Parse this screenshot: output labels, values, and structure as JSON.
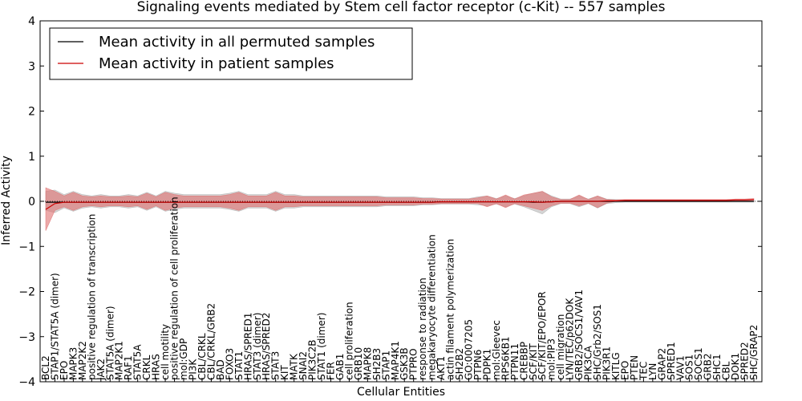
{
  "chart_data": {
    "type": "line",
    "title": "Signaling events mediated by Stem cell factor receptor (c-Kit) -- 557 samples",
    "xlabel": "Cellular Entities",
    "ylabel": "Inferred Activity",
    "ylim": [
      -4,
      4
    ],
    "yticks": [
      -4,
      -3,
      -2,
      -1,
      0,
      1,
      2,
      3,
      4
    ],
    "ytick_labels": [
      "−4",
      "−3",
      "−2",
      "−1",
      "0",
      "1",
      "2",
      "3",
      "4"
    ],
    "categories": [
      "BCL2",
      "STAP1/STAT5A (dimer)",
      "EPO",
      "MAPK3",
      "MAP2K2",
      "positive regulation of transcription",
      "JAK2",
      "STAT5A (dimer)",
      "MAP2K1",
      "RAF1",
      "STAT5A",
      "CRKL",
      "HRAS",
      "cell motility",
      "positive regulation of cell proliferation",
      "mol:GDP",
      "PI3K",
      "CBL/CRKL",
      "CBL/CRKL/GRB2",
      "BAD",
      "FOXO3",
      "STAT1",
      "HRAS/SPRED1",
      "STAT3 (dimer)",
      "HRAS/SPRED2",
      "STAT3",
      "KIT",
      "MATK",
      "SNAI2",
      "PIK3C2B",
      "STAT1 (dimer)",
      "FER",
      "GAB1",
      "cell proliferation",
      "GRB10",
      "MAPK8",
      "SH2B3",
      "STAP1",
      "MAP4K1",
      "GSK3B",
      "PTPRO",
      "response to radiation",
      "megakaryocyte differentiation",
      "AKT1",
      "actin filament polymerization",
      "SH2B2",
      "GO:0007205",
      "PTPN6",
      "PDPK1",
      "mol:Gleevec",
      "RPS6KB1",
      "PTPN11",
      "CREBBP",
      "SCF/KIT",
      "SCF/KIT/EPO/EPOR",
      "mol:PIP3",
      "cell migration",
      "LYN/TEC/p62DOK",
      "GRB2/SOCS1/VAV1",
      "PIK3CA",
      "SHC/Grb2/SOS1",
      "PIK3R1",
      "KITLG",
      "EPO",
      "PTEN",
      "TEC",
      "LYN",
      "GRAP2",
      "SPRED1",
      "VAV1",
      "SOS1",
      "SOCS1",
      "GRB2",
      "SHC1",
      "CBL",
      "DOK1",
      "SPRED2",
      "SHC/GRAP2"
    ],
    "series": [
      {
        "name": "Mean activity in all permuted samples",
        "color": "#000000",
        "values": [
          -0.02,
          -0.02,
          -0.02,
          -0.02,
          -0.02,
          -0.02,
          -0.02,
          -0.02,
          -0.02,
          -0.02,
          -0.02,
          -0.02,
          -0.02,
          -0.02,
          -0.02,
          -0.02,
          -0.02,
          -0.02,
          -0.02,
          -0.02,
          -0.02,
          -0.02,
          -0.02,
          -0.02,
          -0.02,
          -0.02,
          -0.02,
          -0.02,
          -0.02,
          -0.02,
          -0.02,
          -0.02,
          -0.02,
          -0.02,
          -0.02,
          -0.02,
          -0.02,
          -0.02,
          -0.02,
          -0.02,
          -0.02,
          -0.02,
          -0.02,
          -0.01,
          -0.01,
          -0.01,
          -0.01,
          -0.01,
          -0.01,
          -0.01,
          -0.01,
          -0.01,
          -0.01,
          -0.02,
          -0.02,
          -0.01,
          0.0,
          0.0,
          0.0,
          0.0,
          0.0,
          0.0,
          0.0,
          0.0,
          0.0,
          0.0,
          0.0,
          0.0,
          0.0,
          0.0,
          0.0,
          0.0,
          0.0,
          0.0,
          0.0,
          0.0,
          0.0,
          0.0
        ],
        "band_low": [
          -0.2,
          -0.25,
          -0.15,
          -0.22,
          -0.15,
          -0.12,
          -0.15,
          -0.12,
          -0.12,
          -0.15,
          -0.12,
          -0.2,
          -0.12,
          -0.22,
          -0.18,
          -0.15,
          -0.15,
          -0.15,
          -0.15,
          -0.15,
          -0.18,
          -0.22,
          -0.15,
          -0.15,
          -0.15,
          -0.22,
          -0.15,
          -0.15,
          -0.12,
          -0.12,
          -0.12,
          -0.12,
          -0.12,
          -0.12,
          -0.12,
          -0.12,
          -0.12,
          -0.1,
          -0.1,
          -0.1,
          -0.1,
          -0.08,
          -0.08,
          -0.06,
          -0.06,
          -0.06,
          -0.06,
          -0.08,
          -0.1,
          -0.06,
          -0.12,
          -0.06,
          -0.12,
          -0.2,
          -0.28,
          -0.12,
          -0.05,
          -0.05,
          -0.12,
          -0.05,
          -0.15,
          -0.05,
          -0.03,
          -0.02,
          -0.02,
          -0.02,
          -0.02,
          -0.02,
          -0.02,
          -0.02,
          -0.02,
          -0.02,
          -0.02,
          -0.02,
          -0.02,
          -0.02,
          -0.02,
          -0.02
        ],
        "band_high": [
          0.22,
          0.25,
          0.15,
          0.22,
          0.15,
          0.12,
          0.15,
          0.12,
          0.12,
          0.15,
          0.12,
          0.2,
          0.12,
          0.22,
          0.18,
          0.15,
          0.15,
          0.15,
          0.15,
          0.15,
          0.18,
          0.22,
          0.15,
          0.15,
          0.15,
          0.22,
          0.15,
          0.15,
          0.12,
          0.12,
          0.12,
          0.12,
          0.12,
          0.12,
          0.12,
          0.12,
          0.12,
          0.1,
          0.1,
          0.1,
          0.1,
          0.08,
          0.08,
          0.06,
          0.06,
          0.06,
          0.06,
          0.1,
          0.12,
          0.06,
          0.12,
          0.06,
          0.12,
          0.18,
          0.22,
          0.12,
          0.05,
          0.05,
          0.12,
          0.05,
          0.12,
          0.05,
          0.04,
          0.03,
          0.03,
          0.03,
          0.03,
          0.03,
          0.03,
          0.03,
          0.03,
          0.03,
          0.03,
          0.03,
          0.03,
          0.03,
          0.03,
          0.03
        ]
      },
      {
        "name": "Mean activity in patient samples",
        "color": "#cc0000",
        "values": [
          -0.18,
          -0.05,
          -0.02,
          -0.02,
          -0.02,
          -0.02,
          -0.02,
          -0.02,
          -0.02,
          -0.02,
          -0.02,
          -0.02,
          -0.02,
          -0.02,
          -0.02,
          -0.02,
          -0.02,
          -0.02,
          -0.02,
          -0.02,
          -0.02,
          -0.02,
          -0.02,
          -0.02,
          -0.02,
          -0.02,
          -0.02,
          -0.02,
          -0.02,
          -0.02,
          -0.02,
          -0.02,
          -0.02,
          -0.02,
          -0.02,
          -0.02,
          -0.02,
          -0.02,
          -0.02,
          -0.02,
          -0.02,
          -0.02,
          -0.02,
          -0.01,
          -0.01,
          -0.01,
          -0.01,
          -0.01,
          -0.01,
          -0.01,
          -0.01,
          -0.01,
          -0.01,
          -0.01,
          -0.02,
          -0.01,
          0.0,
          0.0,
          0.0,
          0.0,
          0.0,
          0.01,
          0.01,
          0.02,
          0.02,
          0.02,
          0.02,
          0.02,
          0.02,
          0.02,
          0.02,
          0.02,
          0.02,
          0.02,
          0.02,
          0.03,
          0.03,
          0.04
        ],
        "band_low": [
          -0.65,
          -0.2,
          -0.12,
          -0.2,
          -0.12,
          -0.1,
          -0.12,
          -0.1,
          -0.1,
          -0.12,
          -0.1,
          -0.18,
          -0.1,
          -0.2,
          -0.15,
          -0.12,
          -0.12,
          -0.12,
          -0.12,
          -0.12,
          -0.15,
          -0.2,
          -0.12,
          -0.12,
          -0.12,
          -0.2,
          -0.12,
          -0.12,
          -0.1,
          -0.1,
          -0.1,
          -0.1,
          -0.1,
          -0.1,
          -0.1,
          -0.1,
          -0.1,
          -0.08,
          -0.08,
          -0.08,
          -0.08,
          -0.06,
          -0.06,
          -0.05,
          -0.05,
          -0.05,
          -0.05,
          -0.05,
          -0.12,
          -0.05,
          -0.14,
          -0.05,
          -0.1,
          -0.15,
          -0.2,
          -0.1,
          -0.04,
          -0.04,
          -0.1,
          -0.04,
          -0.14,
          -0.04,
          0.0,
          0.0,
          0.0,
          0.0,
          0.0,
          0.0,
          0.0,
          0.0,
          0.0,
          0.0,
          0.0,
          0.0,
          0.0,
          0.01,
          0.01,
          0.02
        ],
        "band_high": [
          0.3,
          0.22,
          0.12,
          0.2,
          0.12,
          0.1,
          0.12,
          0.1,
          0.1,
          0.12,
          0.1,
          0.18,
          0.1,
          0.2,
          0.15,
          0.12,
          0.12,
          0.12,
          0.12,
          0.12,
          0.15,
          0.2,
          0.12,
          0.12,
          0.12,
          0.2,
          0.12,
          0.12,
          0.1,
          0.1,
          0.1,
          0.1,
          0.1,
          0.1,
          0.1,
          0.1,
          0.1,
          0.08,
          0.08,
          0.08,
          0.08,
          0.06,
          0.06,
          0.05,
          0.05,
          0.05,
          0.05,
          0.08,
          0.12,
          0.05,
          0.14,
          0.05,
          0.14,
          0.18,
          0.22,
          0.1,
          0.04,
          0.04,
          0.14,
          0.04,
          0.12,
          0.04,
          0.03,
          0.04,
          0.04,
          0.04,
          0.04,
          0.04,
          0.04,
          0.04,
          0.04,
          0.04,
          0.04,
          0.04,
          0.04,
          0.05,
          0.05,
          0.06
        ]
      }
    ],
    "band_colors": {
      "permuted": "#b0b0b0",
      "patient": "#e07070"
    },
    "legend": {
      "position": "top-left",
      "entries": [
        "Mean activity in all permuted samples",
        "Mean activity in patient samples"
      ]
    },
    "grid": false
  }
}
